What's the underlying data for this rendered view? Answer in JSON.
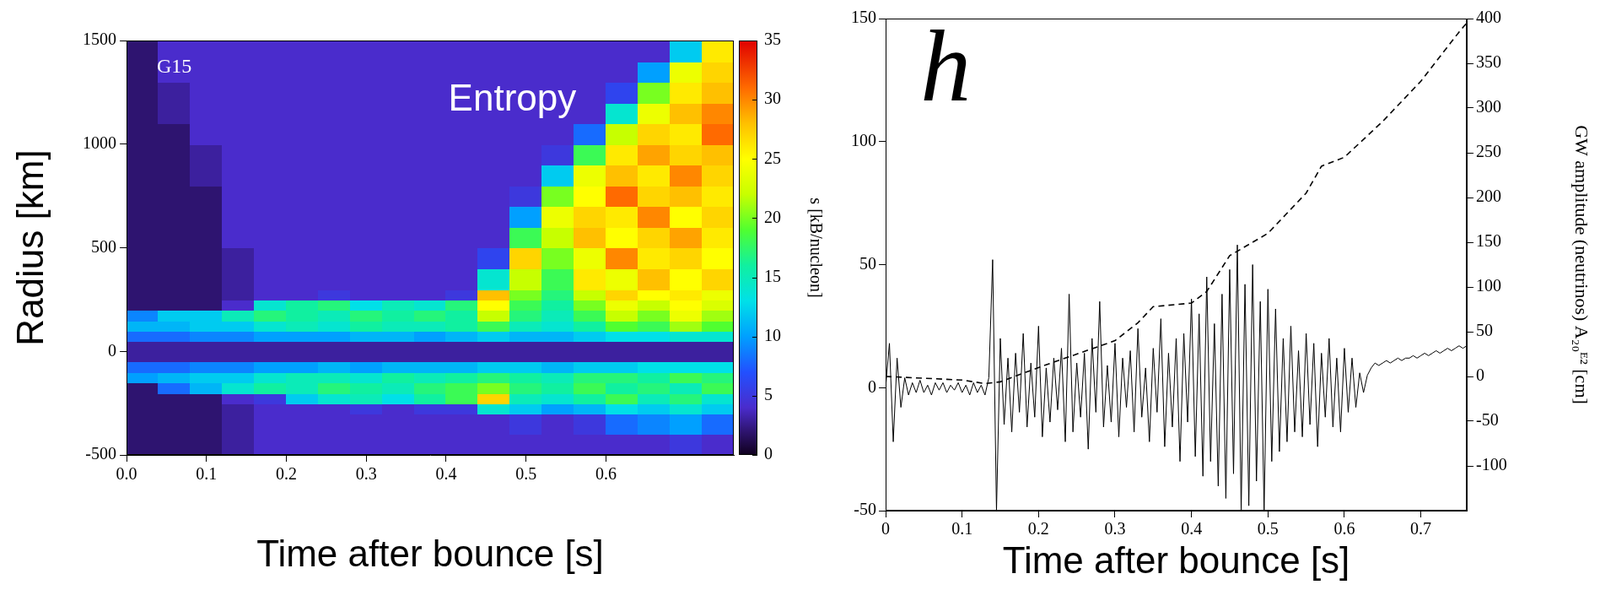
{
  "chart_data": [
    {
      "type": "heatmap",
      "annotations": [
        "G15",
        "Entropy"
      ],
      "xlabel": "Time after bounce [s]",
      "ylabel": "Radius [km]",
      "xlim": [
        0,
        0.76
      ],
      "xticks": [
        {
          "value": 0,
          "label": "0.0"
        },
        0.1,
        0.2,
        0.3,
        0.4,
        0.5,
        0.6
      ],
      "ylim": [
        -500,
        1500
      ],
      "yticks": [
        -500,
        0,
        500,
        1000,
        1500
      ],
      "grid": false,
      "x_bins": [
        0,
        0.04,
        0.08,
        0.12,
        0.16,
        0.2,
        0.24,
        0.28,
        0.32,
        0.36,
        0.4,
        0.44,
        0.48,
        0.52,
        0.56,
        0.6,
        0.64,
        0.68,
        0.72,
        0.76
      ],
      "y_bins": [
        -500,
        -400,
        -300,
        -250,
        -200,
        -150,
        -100,
        -50,
        50,
        100,
        150,
        200,
        250,
        300,
        400,
        500,
        600,
        700,
        800,
        900,
        1000,
        1100,
        1200,
        1300,
        1400,
        1500
      ],
      "cells": [
        [
          2,
          2,
          2,
          3,
          4,
          4,
          4,
          4,
          4,
          4,
          4,
          4,
          4,
          4,
          4,
          4,
          4,
          5,
          4
        ],
        [
          2,
          2,
          2,
          3,
          4,
          4,
          4,
          4,
          4,
          4,
          4,
          4,
          5,
          4,
          5,
          8,
          9,
          10,
          8
        ],
        [
          2,
          2,
          2,
          3,
          4,
          4,
          4,
          5,
          4,
          5,
          5,
          14,
          12,
          10,
          11,
          13,
          12,
          14,
          12
        ],
        [
          2,
          2,
          2,
          4,
          5,
          12,
          14,
          15,
          13,
          16,
          18,
          27,
          15,
          14,
          16,
          18,
          15,
          17,
          14
        ],
        [
          2,
          8,
          11,
          14,
          16,
          15,
          17,
          16,
          15,
          17,
          18,
          20,
          17,
          16,
          18,
          16,
          17,
          15,
          18
        ],
        [
          10,
          11,
          12,
          12,
          14,
          15,
          15,
          14,
          16,
          15,
          16,
          17,
          16,
          15,
          17,
          17,
          16,
          18,
          17
        ],
        [
          8,
          8,
          9,
          9,
          10,
          10,
          11,
          10,
          11,
          11,
          11,
          12,
          12,
          11,
          12,
          12,
          13,
          13,
          13
        ],
        [
          3,
          3,
          3,
          3,
          3,
          3,
          3,
          3,
          3,
          3,
          3,
          3,
          3,
          3,
          3,
          3,
          3,
          3,
          3
        ],
        [
          8,
          8,
          9,
          9,
          10,
          10,
          10,
          11,
          11,
          10,
          11,
          12,
          11,
          11,
          12,
          13,
          13,
          14,
          14
        ],
        [
          11,
          11,
          12,
          12,
          14,
          15,
          14,
          16,
          15,
          15,
          16,
          18,
          15,
          14,
          16,
          19,
          18,
          21,
          19
        ],
        [
          9,
          12,
          12,
          15,
          17,
          16,
          15,
          17,
          16,
          17,
          16,
          22,
          17,
          15,
          18,
          22,
          20,
          24,
          21
        ],
        [
          2,
          2,
          2,
          4,
          14,
          16,
          17,
          13,
          15,
          14,
          17,
          25,
          18,
          16,
          20,
          24,
          22,
          25,
          23
        ],
        [
          2,
          2,
          2,
          3,
          4,
          4,
          5,
          4,
          4,
          4,
          5,
          28,
          20,
          17,
          22,
          27,
          25,
          26,
          24
        ],
        [
          2,
          2,
          2,
          3,
          4,
          4,
          4,
          4,
          4,
          4,
          4,
          14,
          22,
          18,
          26,
          24,
          28,
          25,
          27
        ],
        [
          2,
          2,
          2,
          3,
          4,
          4,
          4,
          4,
          4,
          4,
          4,
          6,
          27,
          20,
          24,
          30,
          26,
          27,
          25
        ],
        [
          2,
          2,
          2,
          4,
          4,
          4,
          4,
          4,
          4,
          4,
          4,
          4,
          18,
          22,
          28,
          25,
          27,
          29,
          26
        ],
        [
          2,
          2,
          2,
          4,
          4,
          4,
          4,
          4,
          4,
          4,
          4,
          4,
          10,
          24,
          27,
          26,
          30,
          25,
          27
        ],
        [
          2,
          2,
          2,
          4,
          4,
          4,
          4,
          4,
          4,
          4,
          4,
          4,
          5,
          20,
          25,
          31,
          27,
          28,
          26
        ],
        [
          2,
          2,
          3,
          4,
          4,
          4,
          4,
          4,
          4,
          4,
          4,
          4,
          4,
          12,
          24,
          28,
          26,
          30,
          27
        ],
        [
          2,
          2,
          3,
          4,
          4,
          4,
          4,
          4,
          4,
          4,
          4,
          4,
          4,
          5,
          18,
          26,
          29,
          27,
          28
        ],
        [
          2,
          2,
          4,
          4,
          4,
          4,
          4,
          4,
          4,
          4,
          4,
          4,
          4,
          4,
          8,
          22,
          27,
          26,
          31
        ],
        [
          2,
          3,
          4,
          4,
          4,
          4,
          4,
          4,
          4,
          4,
          4,
          4,
          4,
          4,
          4,
          14,
          24,
          28,
          30
        ],
        [
          2,
          3,
          4,
          4,
          4,
          4,
          4,
          4,
          4,
          4,
          4,
          4,
          4,
          4,
          4,
          6,
          20,
          26,
          28
        ],
        [
          2,
          4,
          4,
          4,
          4,
          4,
          4,
          4,
          4,
          4,
          4,
          4,
          4,
          4,
          4,
          4,
          10,
          24,
          27
        ],
        [
          2,
          4,
          4,
          4,
          4,
          4,
          4,
          4,
          4,
          4,
          4,
          4,
          4,
          4,
          4,
          4,
          4,
          12,
          26
        ]
      ],
      "colorbar": {
        "label": "s [kB/nucleon]",
        "range": [
          0,
          35
        ],
        "ticks": [
          0,
          5,
          10,
          15,
          20,
          25,
          30,
          35
        ]
      }
    },
    {
      "type": "line",
      "annotations": [
        "h"
      ],
      "xlabel": "Time after bounce [s]",
      "y2label": "GW amplitude (neutrinos) A₂₀ᴱ² [cm]",
      "xlim": [
        0,
        0.76
      ],
      "xticks": [
        0,
        0.1,
        0.2,
        0.3,
        0.4,
        0.5,
        0.6,
        0.7
      ],
      "ylim": [
        -50,
        150
      ],
      "yticks": [
        -50,
        0,
        50,
        100,
        150
      ],
      "y2lim": [
        -150,
        400
      ],
      "y2ticks": [
        -100,
        -50,
        0,
        50,
        100,
        150,
        200,
        250,
        300,
        350,
        400
      ],
      "grid": false,
      "series": [
        {
          "color": "#000000",
          "line_style": "solid",
          "x": [
            0,
            0.005,
            0.01,
            0.015,
            0.02,
            0.025,
            0.03,
            0.035,
            0.04,
            0.045,
            0.05,
            0.055,
            0.06,
            0.065,
            0.07,
            0.075,
            0.08,
            0.085,
            0.09,
            0.095,
            0.1,
            0.105,
            0.11,
            0.115,
            0.12,
            0.125,
            0.13,
            0.135,
            0.14,
            0.145,
            0.15,
            0.155,
            0.16,
            0.165,
            0.17,
            0.175,
            0.18,
            0.185,
            0.19,
            0.195,
            0.2,
            0.205,
            0.21,
            0.215,
            0.22,
            0.225,
            0.23,
            0.235,
            0.24,
            0.245,
            0.25,
            0.255,
            0.26,
            0.265,
            0.27,
            0.275,
            0.28,
            0.285,
            0.29,
            0.295,
            0.3,
            0.305,
            0.31,
            0.315,
            0.32,
            0.325,
            0.33,
            0.335,
            0.34,
            0.345,
            0.35,
            0.355,
            0.36,
            0.365,
            0.37,
            0.375,
            0.38,
            0.385,
            0.39,
            0.395,
            0.4,
            0.405,
            0.41,
            0.415,
            0.42,
            0.425,
            0.43,
            0.435,
            0.44,
            0.445,
            0.45,
            0.455,
            0.46,
            0.465,
            0.47,
            0.475,
            0.48,
            0.485,
            0.49,
            0.495,
            0.5,
            0.505,
            0.51,
            0.515,
            0.52,
            0.525,
            0.53,
            0.535,
            0.54,
            0.545,
            0.55,
            0.555,
            0.56,
            0.565,
            0.57,
            0.575,
            0.58,
            0.585,
            0.59,
            0.595,
            0.6,
            0.605,
            0.61,
            0.615,
            0.62,
            0.625,
            0.63,
            0.635,
            0.64,
            0.645,
            0.65,
            0.655,
            0.66,
            0.665,
            0.67,
            0.675,
            0.68,
            0.685,
            0.69,
            0.695,
            0.7,
            0.705,
            0.71,
            0.715,
            0.72,
            0.725,
            0.73,
            0.735,
            0.74,
            0.745,
            0.75,
            0.755,
            0.76
          ],
          "values": [
            0,
            18,
            -22,
            12,
            -8,
            4,
            -3,
            2,
            -2,
            3,
            -2,
            1,
            -3,
            2,
            -1,
            2,
            -2,
            1,
            -1,
            2,
            -2,
            1,
            -3,
            2,
            -2,
            1,
            -3,
            4,
            52,
            -50,
            20,
            -15,
            12,
            -18,
            14,
            -10,
            22,
            -16,
            10,
            -12,
            25,
            -20,
            8,
            -14,
            12,
            -9,
            16,
            -22,
            38,
            -18,
            10,
            -12,
            14,
            -25,
            20,
            -10,
            35,
            -16,
            9,
            -14,
            18,
            -20,
            12,
            -8,
            15,
            -18,
            24,
            -12,
            8,
            -22,
            16,
            -10,
            28,
            -24,
            14,
            -16,
            20,
            -30,
            22,
            -14,
            36,
            -28,
            30,
            -36,
            45,
            -30,
            26,
            -40,
            38,
            -45,
            48,
            -35,
            58,
            -50,
            42,
            -48,
            50,
            -38,
            35,
            -50,
            40,
            -30,
            32,
            -26,
            20,
            -22,
            25,
            -18,
            15,
            -20,
            22,
            -15,
            18,
            -24,
            14,
            -12,
            20,
            -16,
            12,
            -18,
            16,
            -10,
            12,
            -8,
            6,
            -2,
            5,
            8,
            10,
            9,
            10,
            11,
            10,
            11,
            12,
            11,
            12,
            12,
            13,
            12,
            13,
            14,
            13,
            14,
            15,
            14,
            15,
            16,
            15,
            16,
            17,
            16,
            17
          ]
        },
        {
          "color": "#000000",
          "line_style": "dashed",
          "axis": "y2",
          "x": [
            0,
            0.05,
            0.1,
            0.13,
            0.15,
            0.2,
            0.25,
            0.3,
            0.33,
            0.35,
            0.4,
            0.42,
            0.45,
            0.48,
            0.5,
            0.55,
            0.57,
            0.6,
            0.65,
            0.7,
            0.75,
            0.76
          ],
          "values": [
            0,
            -2,
            -4,
            -8,
            -6,
            10,
            25,
            40,
            60,
            78,
            82,
            95,
            135,
            150,
            160,
            205,
            235,
            245,
            285,
            330,
            385,
            395
          ]
        }
      ]
    }
  ]
}
